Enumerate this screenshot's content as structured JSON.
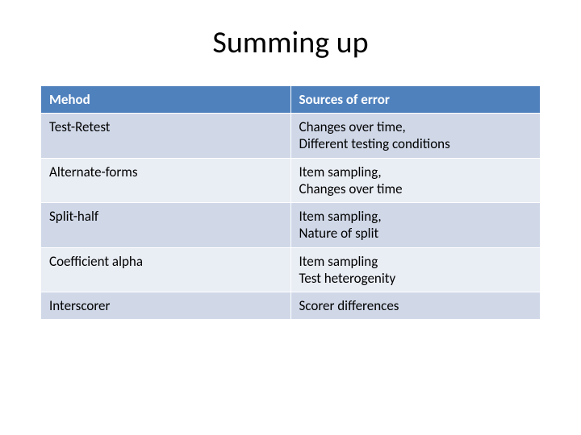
{
  "title": "Summing up",
  "table": {
    "header_bg": "#4f81bd",
    "header_fg": "#ffffff",
    "row_odd_bg": "#d0d8e8",
    "row_even_bg": "#e9edf4",
    "border_color": "#ffffff",
    "font_size": 17,
    "columns": [
      "Mehod",
      "Sources of error"
    ],
    "rows": [
      [
        "Test-Retest",
        "Changes over time,\nDifferent testing conditions"
      ],
      [
        "Alternate-forms",
        "Item sampling,\nChanges over time"
      ],
      [
        "Split-half",
        "Item sampling,\nNature of split"
      ],
      [
        "Coefficient alpha",
        "Item sampling\nTest heterogenity"
      ],
      [
        "Interscorer",
        "Scorer differences"
      ]
    ]
  }
}
